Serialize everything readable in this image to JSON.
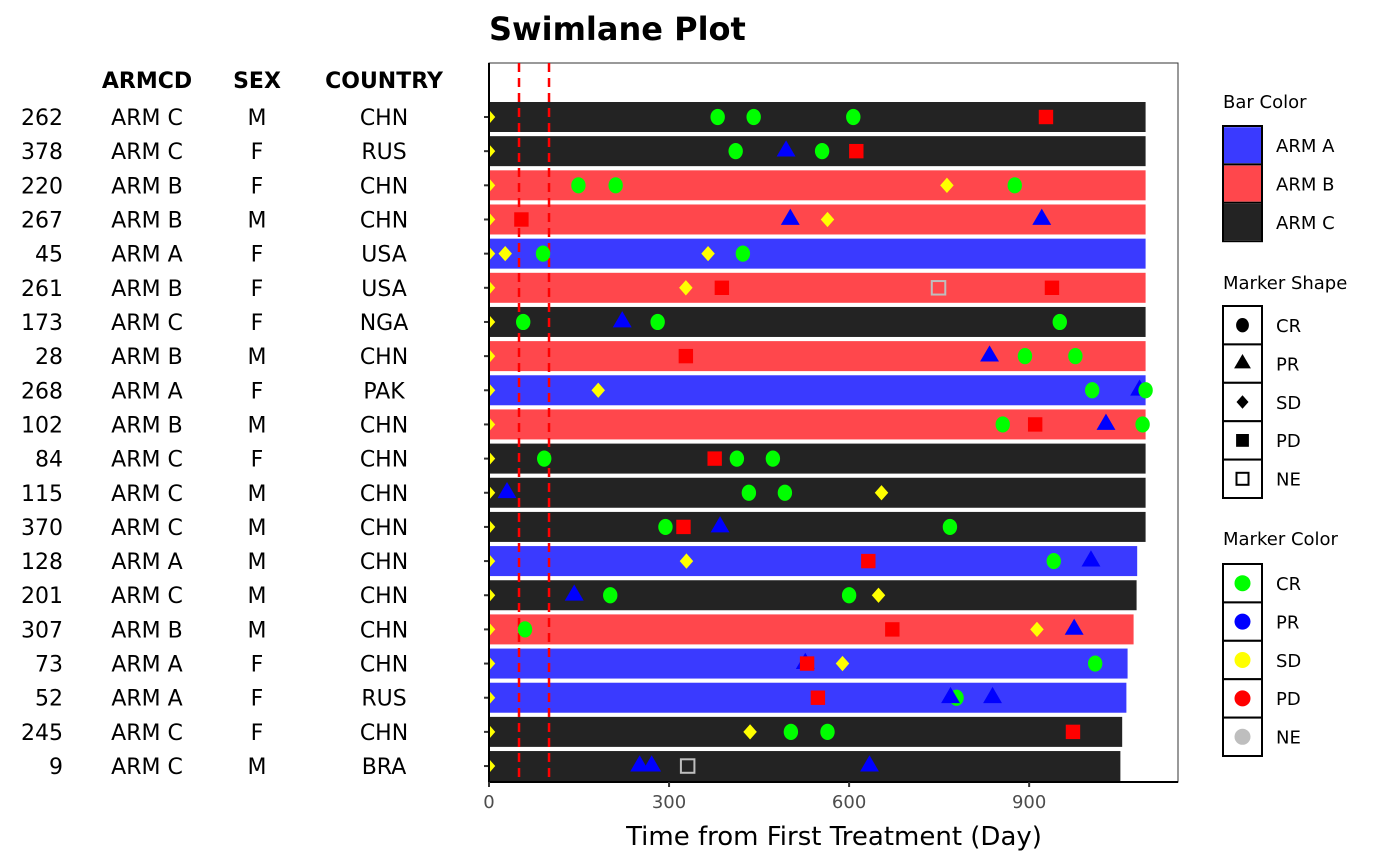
{
  "chart_data": {
    "type": "swimlane",
    "title": "Swimlane Plot",
    "xlabel": "Time from First Treatment (Day)",
    "xlim": [
      0,
      1148
    ],
    "xticks": [
      0,
      300,
      600,
      900
    ],
    "reference_lines": [
      50,
      100
    ],
    "table_headers": [
      "ARMCD",
      "SEX",
      "COUNTRY"
    ],
    "colors": {
      "ARM A": "#3a3aff",
      "ARM B": "#ff474c",
      "ARM C": "#232323",
      "CR": "#00ff00",
      "PR": "#0000ff",
      "SD": "#ffff00",
      "PD": "#ff0000",
      "NE": "#bebebe"
    },
    "rows": [
      {
        "id": "262",
        "arm": "ARM C",
        "sex": "M",
        "country": "CHN",
        "end": 1094,
        "events": [
          [
            "CR",
            381
          ],
          [
            "CR",
            441
          ],
          [
            "CR",
            607
          ],
          [
            "PD",
            928
          ]
        ]
      },
      {
        "id": "378",
        "arm": "ARM C",
        "sex": "F",
        "country": "RUS",
        "end": 1094,
        "events": [
          [
            "CR",
            411
          ],
          [
            "PR",
            495
          ],
          [
            "CR",
            555
          ],
          [
            "PD",
            612
          ]
        ]
      },
      {
        "id": "220",
        "arm": "ARM B",
        "sex": "F",
        "country": "CHN",
        "end": 1094,
        "events": [
          [
            "CR",
            149
          ],
          [
            "CR",
            211
          ],
          [
            "SD",
            763
          ],
          [
            "CR",
            876
          ]
        ]
      },
      {
        "id": "267",
        "arm": "ARM B",
        "sex": "M",
        "country": "CHN",
        "end": 1094,
        "events": [
          [
            "PD",
            54
          ],
          [
            "PR",
            502
          ],
          [
            "SD",
            564
          ],
          [
            "PR",
            921
          ]
        ]
      },
      {
        "id": "45",
        "arm": "ARM A",
        "sex": "F",
        "country": "USA",
        "end": 1094,
        "events": [
          [
            "SD",
            27
          ],
          [
            "CR",
            90
          ],
          [
            "SD",
            365
          ],
          [
            "CR",
            423
          ]
        ]
      },
      {
        "id": "261",
        "arm": "ARM B",
        "sex": "F",
        "country": "USA",
        "end": 1094,
        "events": [
          [
            "SD",
            328
          ],
          [
            "PD",
            388
          ],
          [
            "NE",
            749
          ],
          [
            "PD",
            938
          ]
        ]
      },
      {
        "id": "173",
        "arm": "ARM C",
        "sex": "F",
        "country": "NGA",
        "end": 1094,
        "events": [
          [
            "CR",
            57
          ],
          [
            "PR",
            222
          ],
          [
            "CR",
            281
          ],
          [
            "CR",
            951
          ]
        ]
      },
      {
        "id": "28",
        "arm": "ARM B",
        "sex": "M",
        "country": "CHN",
        "end": 1094,
        "events": [
          [
            "PD",
            328
          ],
          [
            "PR",
            834
          ],
          [
            "CR",
            893
          ],
          [
            "CR",
            977
          ]
        ]
      },
      {
        "id": "268",
        "arm": "ARM A",
        "sex": "F",
        "country": "PAK",
        "end": 1094,
        "events": [
          [
            "SD",
            182
          ],
          [
            "CR",
            1005
          ],
          [
            "PR",
            1084
          ],
          [
            "CR",
            1094
          ]
        ]
      },
      {
        "id": "102",
        "arm": "ARM B",
        "sex": "M",
        "country": "CHN",
        "end": 1094,
        "events": [
          [
            "CR",
            856
          ],
          [
            "PD",
            910
          ],
          [
            "PR",
            1028
          ],
          [
            "CR",
            1089
          ]
        ]
      },
      {
        "id": "84",
        "arm": "ARM C",
        "sex": "F",
        "country": "CHN",
        "end": 1094,
        "events": [
          [
            "CR",
            92
          ],
          [
            "PD",
            376
          ],
          [
            "CR",
            413
          ],
          [
            "CR",
            473
          ]
        ]
      },
      {
        "id": "115",
        "arm": "ARM C",
        "sex": "M",
        "country": "CHN",
        "end": 1094,
        "events": [
          [
            "PR",
            30
          ],
          [
            "CR",
            433
          ],
          [
            "CR",
            493
          ],
          [
            "SD",
            654
          ]
        ]
      },
      {
        "id": "370",
        "arm": "ARM C",
        "sex": "M",
        "country": "CHN",
        "end": 1094,
        "events": [
          [
            "CR",
            294
          ],
          [
            "PD",
            324
          ],
          [
            "PR",
            385
          ],
          [
            "CR",
            768
          ]
        ]
      },
      {
        "id": "128",
        "arm": "ARM A",
        "sex": "M",
        "country": "CHN",
        "end": 1080,
        "events": [
          [
            "SD",
            329
          ],
          [
            "PD",
            632
          ],
          [
            "CR",
            941
          ],
          [
            "PR",
            1003
          ]
        ]
      },
      {
        "id": "201",
        "arm": "ARM C",
        "sex": "M",
        "country": "CHN",
        "end": 1079,
        "events": [
          [
            "PR",
            142
          ],
          [
            "CR",
            202
          ],
          [
            "CR",
            600
          ],
          [
            "SD",
            649
          ]
        ]
      },
      {
        "id": "307",
        "arm": "ARM B",
        "sex": "M",
        "country": "CHN",
        "end": 1074,
        "events": [
          [
            "CR",
            60
          ],
          [
            "PD",
            672
          ],
          [
            "SD",
            913
          ],
          [
            "PR",
            975
          ]
        ]
      },
      {
        "id": "73",
        "arm": "ARM A",
        "sex": "F",
        "country": "CHN",
        "end": 1064,
        "events": [
          [
            "PR",
            527
          ],
          [
            "PD",
            530
          ],
          [
            "SD",
            589
          ],
          [
            "CR",
            1010
          ]
        ]
      },
      {
        "id": "52",
        "arm": "ARM A",
        "sex": "F",
        "country": "RUS",
        "end": 1062,
        "events": [
          [
            "PD",
            548
          ],
          [
            "CR",
            779
          ],
          [
            "PR",
            769
          ],
          [
            "PR",
            839
          ]
        ]
      },
      {
        "id": "245",
        "arm": "ARM C",
        "sex": "F",
        "country": "CHN",
        "end": 1055,
        "events": [
          [
            "SD",
            435
          ],
          [
            "CR",
            503
          ],
          [
            "CR",
            564
          ],
          [
            "PD",
            973
          ]
        ]
      },
      {
        "id": "9",
        "arm": "ARM C",
        "sex": "M",
        "country": "BRA",
        "end": 1052,
        "events": [
          [
            "PR",
            251
          ],
          [
            "PR",
            271
          ],
          [
            "NE",
            331
          ],
          [
            "PR",
            634
          ]
        ]
      }
    ],
    "legend": {
      "bar_color": {
        "title": "Bar Color",
        "items": [
          "ARM A",
          "ARM B",
          "ARM C"
        ]
      },
      "marker_shape": {
        "title": "Marker Shape",
        "items": [
          "CR",
          "PR",
          "SD",
          "PD",
          "NE"
        ]
      },
      "marker_color": {
        "title": "Marker Color",
        "items": [
          "CR",
          "PR",
          "SD",
          "PD",
          "NE"
        ]
      }
    }
  }
}
